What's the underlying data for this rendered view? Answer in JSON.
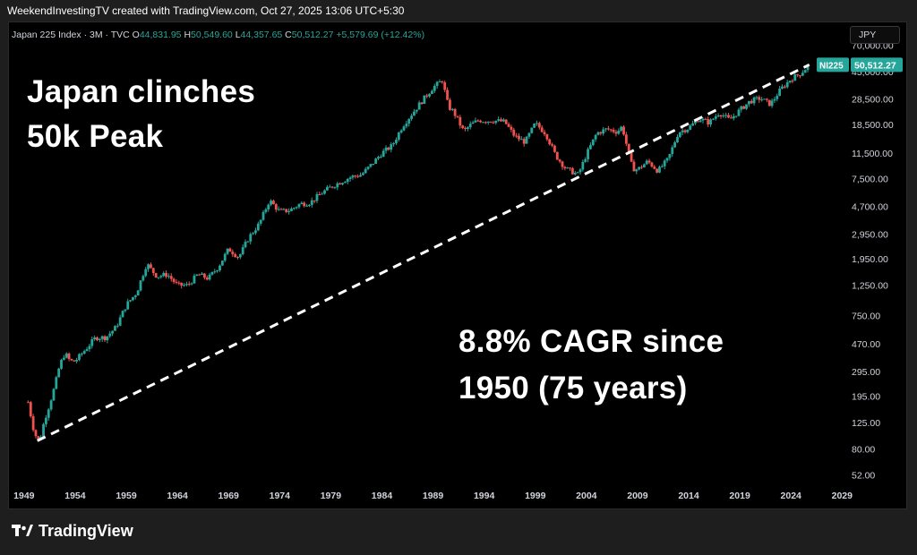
{
  "header": {
    "text": "WeekendInvestingTV created with TradingView.com, Oct 27, 2025 13:06 UTC+5:30"
  },
  "legend": {
    "title": "Japan 225 Index · 3M · TVC",
    "o_label": "O",
    "o_value": "44,831.95",
    "h_label": "H",
    "h_value": "50,549.60",
    "l_label": "L",
    "l_value": "44,357.65",
    "c_label": "C",
    "c_value": "50,512.27",
    "change": "+5,579.69 (+12.42%)"
  },
  "currency_button": "JPY",
  "annotations": {
    "headline_line1": "Japan clinches",
    "headline_line2": "50k Peak",
    "cagr_line1": "8.8% CAGR since",
    "cagr_line2": "1950 (75 years)"
  },
  "price_tags": {
    "symbol": "NI225",
    "last": "50,512.27"
  },
  "footer": {
    "brand": "TradingView"
  },
  "colors": {
    "up": "#26a69a",
    "down": "#ef5350",
    "background": "#000000",
    "trendline": "#ffffff"
  },
  "chart_data": {
    "type": "candlestick",
    "title": "Japan 225 Index",
    "interval": "3M",
    "scale": "log",
    "grid": false,
    "y_ticks": [
      "70,000.00",
      "45,000.00",
      "28,500.00",
      "18,500.00",
      "11,500.00",
      "7,500.00",
      "4,700.00",
      "2,950.00",
      "1,950.00",
      "1,250.00",
      "750.00",
      "470.00",
      "295.00",
      "195.00",
      "125.00",
      "80.00",
      "52.00"
    ],
    "x_ticks": [
      "1949",
      "1954",
      "1959",
      "1964",
      "1969",
      "1974",
      "1979",
      "1984",
      "1989",
      "1994",
      "1999",
      "2004",
      "2009",
      "2014",
      "2019",
      "2024",
      "2029"
    ],
    "ylim": [
      45,
      75000
    ],
    "xlim": [
      1947.7,
      2029.5
    ],
    "trendline": {
      "from": [
        1950.3,
        92
      ],
      "to": [
        2025.8,
        50512
      ]
    },
    "series": [
      {
        "x": [
          1949.4,
          1950.0,
          1950.5,
          1951.0,
          1951.5,
          1952.0,
          1952.5,
          1953.0,
          1953.5,
          1954.0,
          1955.0,
          1956.0,
          1957.0,
          1958.0,
          1959.0,
          1960.0,
          1961.0,
          1961.5,
          1962.0,
          1963.0,
          1964.0,
          1965.0,
          1966.0,
          1967.0,
          1968.0,
          1969.0,
          1970.0,
          1971.0,
          1972.0,
          1973.0,
          1974.0,
          1975.0,
          1976.0,
          1977.0,
          1978.0,
          1979.0,
          1980.0,
          1981.0,
          1982.0,
          1983.0,
          1984.0,
          1985.0,
          1986.0,
          1987.0,
          1988.0,
          1989.0,
          1989.9,
          1990.5,
          1991.0,
          1992.0,
          1992.7,
          1993.5,
          1994.0,
          1995.0,
          1996.0,
          1997.0,
          1998.0,
          1999.0,
          2000.0,
          2001.0,
          2002.0,
          2003.2,
          2004.0,
          2005.0,
          2006.0,
          2007.0,
          2007.5,
          2008.0,
          2008.5,
          2009.0,
          2010.0,
          2011.0,
          2012.0,
          2013.0,
          2014.0,
          2015.0,
          2016.0,
          2017.0,
          2018.0,
          2019.0,
          2020.0,
          2021.0,
          2022.0,
          2023.0,
          2024.0,
          2025.0,
          2025.8
        ],
        "close": [
          176,
          105,
          90,
          130,
          170,
          230,
          330,
          400,
          350,
          350,
          425,
          520,
          520,
          620,
          900,
          1100,
          1800,
          1600,
          1450,
          1500,
          1250,
          1250,
          1500,
          1400,
          1700,
          2300,
          2000,
          2800,
          3500,
          5200,
          4300,
          4400,
          4900,
          5000,
          5800,
          6500,
          7100,
          7700,
          8000,
          9500,
          11500,
          13000,
          18000,
          22500,
          28000,
          34500,
          38900,
          25000,
          23000,
          16500,
          18500,
          20000,
          19700,
          19800,
          19400,
          15200,
          13800,
          18900,
          16000,
          11000,
          8800,
          8000,
          11200,
          16000,
          17200,
          16400,
          18000,
          12500,
          8900,
          8700,
          10000,
          8500,
          10400,
          16300,
          17500,
          20500,
          19100,
          22700,
          20000,
          23600,
          27400,
          28800,
          26000,
          33400,
          39800,
          44000,
          50512
        ]
      }
    ]
  }
}
